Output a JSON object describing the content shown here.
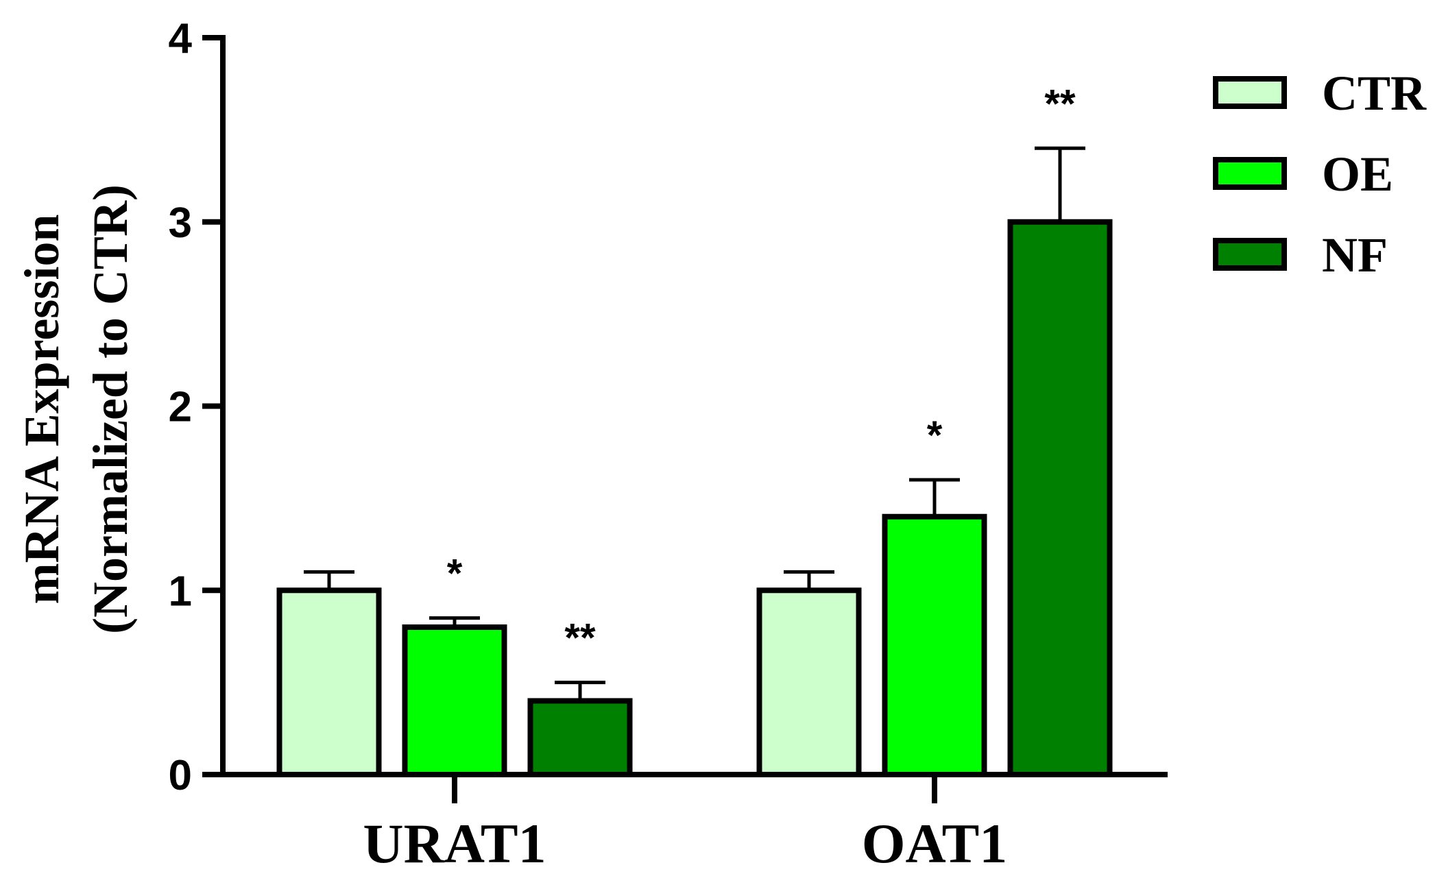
{
  "chart_data": {
    "type": "bar",
    "categories": [
      "URAT1",
      "OAT1"
    ],
    "series": [
      {
        "name": "CTR",
        "values": [
          1.0,
          1.0
        ],
        "errors": [
          0.1,
          0.1
        ],
        "significance": [
          "",
          ""
        ],
        "color": "#ccffcc"
      },
      {
        "name": "OE",
        "values": [
          0.8,
          1.4
        ],
        "errors": [
          0.05,
          0.2
        ],
        "significance": [
          "*",
          "*"
        ],
        "color": "#00ff00"
      },
      {
        "name": "NF",
        "values": [
          0.4,
          3.0
        ],
        "errors": [
          0.1,
          0.4
        ],
        "significance": [
          "**",
          "**"
        ],
        "color": "#008000"
      }
    ],
    "ylabel_line1": "mRNA Expression",
    "ylabel_line2": "(Normalized to CTR)",
    "ylim": [
      0,
      4
    ],
    "yticks": [
      "0",
      "1",
      "2",
      "3",
      "4"
    ],
    "legend_position": "top-right",
    "grid": false
  }
}
